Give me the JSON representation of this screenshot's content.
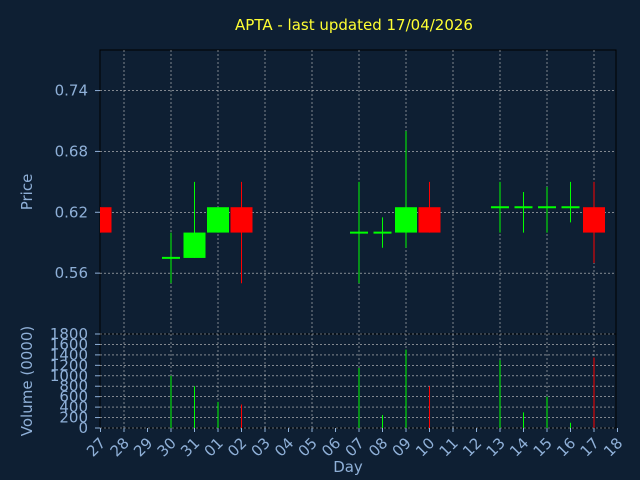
{
  "chart_data": {
    "type": "candlestick",
    "title": "APTA - last updated 17/04/2026",
    "xlabel": "Day",
    "ylabel_price": "Price",
    "ylabel_volume": "Volume (0000)",
    "x_ticks": [
      "27",
      "28",
      "29",
      "30",
      "31",
      "01",
      "02",
      "03",
      "04",
      "05",
      "06",
      "07",
      "08",
      "09",
      "10",
      "11",
      "12",
      "13",
      "14",
      "15",
      "16",
      "17",
      "18"
    ],
    "price_ticks": [
      "0.74",
      "0.68",
      "0.62",
      "0.56"
    ],
    "price_tick_values": [
      0.74,
      0.68,
      0.62,
      0.56
    ],
    "price_ylim": [
      0.5,
      0.78
    ],
    "volume_ticks": [
      "1800",
      "1600",
      "1400",
      "1200",
      "1000",
      "800",
      "600",
      "400",
      "200",
      "0"
    ],
    "volume_tick_values": [
      1800,
      1600,
      1400,
      1200,
      1000,
      800,
      600,
      400,
      200,
      0
    ],
    "volume_ylim": [
      0,
      1800
    ],
    "grid": true,
    "candles": [
      {
        "day": 0,
        "open": 0.625,
        "close": 0.6,
        "high": 0.625,
        "low": 0.6,
        "volume": 0
      },
      {
        "day": 3,
        "open": 0.575,
        "close": 0.575,
        "high": 0.6,
        "low": 0.55,
        "volume": 1000
      },
      {
        "day": 4,
        "open": 0.575,
        "close": 0.6,
        "high": 0.65,
        "low": 0.575,
        "volume": 800
      },
      {
        "day": 5,
        "open": 0.6,
        "close": 0.625,
        "high": 0.625,
        "low": 0.6,
        "volume": 500
      },
      {
        "day": 6,
        "open": 0.625,
        "close": 0.6,
        "high": 0.65,
        "low": 0.55,
        "volume": 450
      },
      {
        "day": 11,
        "open": 0.6,
        "close": 0.6,
        "high": 0.65,
        "low": 0.55,
        "volume": 1150
      },
      {
        "day": 12,
        "open": 0.6,
        "close": 0.6,
        "high": 0.615,
        "low": 0.585,
        "volume": 250
      },
      {
        "day": 13,
        "open": 0.6,
        "close": 0.625,
        "high": 0.7,
        "low": 0.585,
        "volume": 1500
      },
      {
        "day": 14,
        "open": 0.625,
        "close": 0.6,
        "high": 0.65,
        "low": 0.6,
        "volume": 800
      },
      {
        "day": 17,
        "open": 0.625,
        "close": 0.625,
        "high": 0.65,
        "low": 0.6,
        "volume": 1300
      },
      {
        "day": 18,
        "open": 0.625,
        "close": 0.625,
        "high": 0.64,
        "low": 0.6,
        "volume": 300
      },
      {
        "day": 19,
        "open": 0.625,
        "close": 0.625,
        "high": 0.645,
        "low": 0.6,
        "volume": 600
      },
      {
        "day": 20,
        "open": 0.625,
        "close": 0.625,
        "high": 0.65,
        "low": 0.61,
        "volume": 100
      },
      {
        "day": 21,
        "open": 0.625,
        "close": 0.6,
        "high": 0.65,
        "low": 0.57,
        "volume": 1350
      }
    ],
    "colors": {
      "background": "#0e1f33",
      "up": "#00ff00",
      "down": "#ff0000",
      "axis_text": "#8fb0d8",
      "title": "#ffff33",
      "grid": "#c8c8c8",
      "frame": "#000000"
    }
  }
}
